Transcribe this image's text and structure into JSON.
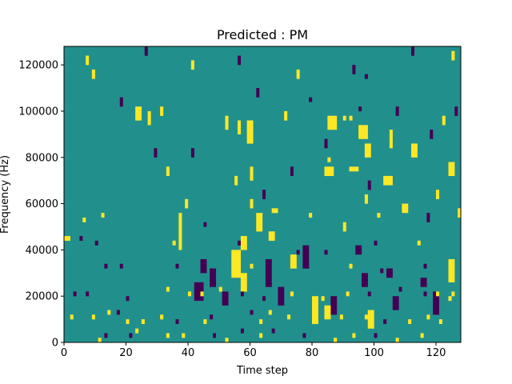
{
  "chart_data": {
    "type": "heatmap",
    "title": "Predicted : PM",
    "xlabel": "Time step",
    "ylabel": "Frequency (Hz)",
    "xlim": [
      0,
      128
    ],
    "ylim": [
      0,
      128000
    ],
    "xticks": [
      0,
      20,
      40,
      60,
      80,
      100,
      120
    ],
    "yticks": [
      0,
      20000,
      40000,
      60000,
      80000,
      100000,
      120000
    ],
    "grid": false,
    "legend": "none",
    "n_time_steps": 128,
    "n_frequency_bins": 64,
    "colormap": "viridis",
    "value_levels": [
      -1,
      0,
      1
    ],
    "level_colors": {
      "-1": "#440154",
      "0": "#21908d",
      "1": "#fde725"
    },
    "background_value": 0,
    "cells": [
      [
        6,
        26,
        1
      ],
      [
        12,
        27,
        1
      ],
      [
        45,
        25,
        -1
      ],
      [
        79,
        27,
        1
      ],
      [
        101,
        27,
        1
      ],
      [
        5,
        22,
        -1
      ],
      [
        10,
        21,
        -1
      ],
      [
        35,
        21,
        1
      ],
      [
        56,
        21,
        -1
      ],
      [
        75,
        19,
        -1
      ],
      [
        84,
        19,
        -1
      ],
      [
        100,
        21,
        -1
      ],
      [
        114,
        21,
        1
      ],
      [
        13,
        16,
        -1
      ],
      [
        18,
        16,
        -1
      ],
      [
        36,
        16,
        -1
      ],
      [
        48,
        15,
        -1
      ],
      [
        60,
        16,
        1
      ],
      [
        78,
        16,
        -1
      ],
      [
        92,
        16,
        1
      ],
      [
        102,
        15,
        -1
      ],
      [
        116,
        16,
        -1
      ],
      [
        3,
        10,
        -1
      ],
      [
        7,
        10,
        -1
      ],
      [
        20,
        9,
        -1
      ],
      [
        33,
        11,
        1
      ],
      [
        40,
        10,
        1
      ],
      [
        44,
        10,
        1
      ],
      [
        50,
        11,
        1
      ],
      [
        57,
        10,
        -1
      ],
      [
        64,
        9,
        -1
      ],
      [
        73,
        10,
        1
      ],
      [
        83,
        9,
        1
      ],
      [
        91,
        10,
        1
      ],
      [
        98,
        10,
        -1
      ],
      [
        108,
        11,
        -1
      ],
      [
        116,
        10,
        -1
      ],
      [
        120,
        10,
        1
      ],
      [
        124,
        9,
        1
      ],
      [
        125,
        10,
        1
      ],
      [
        2,
        5,
        1
      ],
      [
        9,
        5,
        1
      ],
      [
        14,
        6,
        1
      ],
      [
        17,
        6,
        -1
      ],
      [
        20,
        4,
        1
      ],
      [
        25,
        4,
        1
      ],
      [
        31,
        5,
        1
      ],
      [
        36,
        4,
        -1
      ],
      [
        45,
        4,
        1
      ],
      [
        47,
        5,
        -1
      ],
      [
        60,
        6,
        -1
      ],
      [
        63,
        4,
        1
      ],
      [
        66,
        6,
        1
      ],
      [
        72,
        5,
        1
      ],
      [
        80,
        4,
        1
      ],
      [
        89,
        5,
        1
      ],
      [
        97,
        5,
        1
      ],
      [
        103,
        4,
        -1
      ],
      [
        111,
        4,
        1
      ],
      [
        117,
        5,
        1
      ],
      [
        121,
        4,
        1
      ],
      [
        11,
        0,
        1
      ],
      [
        13,
        1,
        -1
      ],
      [
        21,
        1,
        -1
      ],
      [
        23,
        2,
        1
      ],
      [
        33,
        1,
        1
      ],
      [
        38,
        1,
        1
      ],
      [
        48,
        1,
        -1
      ],
      [
        52,
        0,
        1
      ],
      [
        57,
        2,
        -1
      ],
      [
        63,
        1,
        1
      ],
      [
        67,
        2,
        -1
      ],
      [
        77,
        1,
        -1
      ],
      [
        87,
        0,
        1
      ],
      [
        93,
        1,
        1
      ],
      [
        100,
        1,
        -1
      ],
      [
        107,
        0,
        1
      ],
      [
        115,
        1,
        1
      ]
    ],
    "rects": [
      [
        0,
        22,
        2,
        1,
        1
      ],
      [
        60,
        29,
        1,
        2,
        1
      ],
      [
        67,
        28,
        2,
        1,
        1
      ],
      [
        55,
        34,
        1,
        2,
        1
      ],
      [
        85,
        39,
        1,
        1,
        1
      ],
      [
        92,
        37,
        3,
        1,
        1
      ],
      [
        23,
        48,
        2,
        3,
        1
      ],
      [
        27,
        47,
        1,
        3,
        1
      ],
      [
        52,
        46,
        1,
        3,
        1
      ],
      [
        56,
        45,
        1,
        3,
        1
      ],
      [
        59,
        43,
        2,
        5,
        1
      ],
      [
        85,
        46,
        3,
        3,
        1
      ],
      [
        95,
        44,
        3,
        3,
        1
      ],
      [
        105,
        42,
        1,
        4,
        1
      ],
      [
        112,
        40,
        2,
        3,
        1
      ],
      [
        124,
        36,
        2,
        3,
        1
      ],
      [
        84,
        36,
        3,
        2,
        1
      ],
      [
        97,
        40,
        2,
        3,
        1
      ],
      [
        103,
        34,
        3,
        2,
        1
      ],
      [
        109,
        28,
        2,
        2,
        1
      ],
      [
        37,
        20,
        1,
        8,
        1
      ],
      [
        54,
        14,
        3,
        6,
        1
      ],
      [
        57,
        20,
        2,
        3,
        1
      ],
      [
        62,
        24,
        2,
        4,
        1
      ],
      [
        66,
        22,
        2,
        2,
        1
      ],
      [
        42,
        9,
        3,
        4,
        -1
      ],
      [
        47,
        12,
        2,
        4,
        -1
      ],
      [
        51,
        8,
        2,
        3,
        -1
      ],
      [
        65,
        12,
        2,
        6,
        -1
      ],
      [
        69,
        8,
        2,
        4,
        -1
      ],
      [
        77,
        16,
        2,
        5,
        -1
      ],
      [
        86,
        6,
        2,
        4,
        -1
      ],
      [
        96,
        12,
        2,
        3,
        -1
      ],
      [
        106,
        7,
        2,
        3,
        -1
      ],
      [
        119,
        6,
        2,
        5,
        -1
      ],
      [
        57,
        11,
        2,
        4,
        1
      ],
      [
        73,
        16,
        2,
        3,
        1
      ],
      [
        80,
        4,
        2,
        6,
        1
      ],
      [
        84,
        5,
        2,
        3,
        1
      ],
      [
        98,
        3,
        2,
        4,
        1
      ],
      [
        124,
        13,
        2,
        5,
        1
      ],
      [
        44,
        15,
        2,
        3,
        -1
      ],
      [
        94,
        19,
        2,
        2,
        -1
      ],
      [
        104,
        14,
        2,
        2,
        -1
      ],
      [
        115,
        12,
        2,
        2,
        -1
      ],
      [
        60,
        35,
        1,
        3,
        1
      ],
      [
        73,
        36,
        1,
        2,
        -1
      ],
      [
        97,
        30,
        1,
        2,
        1
      ],
      [
        117,
        26,
        1,
        2,
        -1
      ],
      [
        127,
        27,
        1,
        2,
        1
      ],
      [
        29,
        40,
        1,
        2,
        -1
      ],
      [
        33,
        36,
        1,
        2,
        1
      ],
      [
        39,
        29,
        1,
        2,
        1
      ],
      [
        64,
        31,
        1,
        2,
        -1
      ],
      [
        90,
        24,
        1,
        2,
        1
      ],
      [
        98,
        33,
        1,
        2,
        -1
      ],
      [
        120,
        31,
        1,
        2,
        1
      ],
      [
        9,
        57,
        1,
        2,
        1
      ],
      [
        18,
        51,
        1,
        2,
        -1
      ],
      [
        31,
        49,
        1,
        2,
        1
      ],
      [
        41,
        40,
        1,
        2,
        -1
      ],
      [
        62,
        53,
        1,
        2,
        -1
      ],
      [
        71,
        48,
        1,
        2,
        1
      ],
      [
        84,
        42,
        1,
        2,
        -1
      ],
      [
        107,
        49,
        1,
        2,
        -1
      ],
      [
        118,
        44,
        1,
        2,
        -1
      ],
      [
        122,
        47,
        1,
        2,
        1
      ],
      [
        126,
        49,
        1,
        2,
        -1
      ],
      [
        7,
        60,
        1,
        2,
        1
      ],
      [
        26,
        62,
        1,
        2,
        -1
      ],
      [
        41,
        59,
        1,
        2,
        1
      ],
      [
        56,
        60,
        1,
        2,
        -1
      ],
      [
        75,
        57,
        1,
        2,
        1
      ],
      [
        93,
        58,
        1,
        2,
        -1
      ],
      [
        112,
        62,
        1,
        2,
        -1
      ],
      [
        125,
        61,
        1,
        2,
        1
      ],
      [
        90,
        48,
        1,
        1,
        1
      ],
      [
        92,
        48,
        1,
        1,
        1
      ],
      [
        79,
        52,
        1,
        1,
        -1
      ],
      [
        95,
        50,
        1,
        1,
        -1
      ],
      [
        97,
        57,
        1,
        1,
        -1
      ]
    ]
  }
}
